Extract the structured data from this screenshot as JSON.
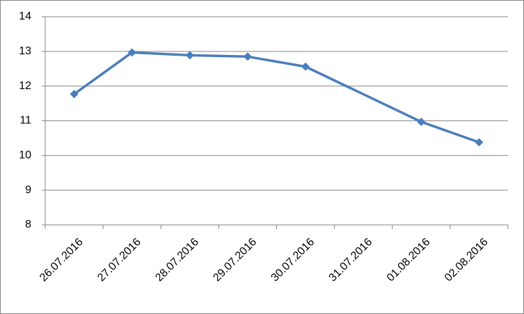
{
  "chart_data": {
    "type": "line",
    "x": [
      "26.07.2016",
      "27.07.2016",
      "28.07.2016",
      "29.07.2016",
      "30.07.2016",
      "01.08.2016",
      "02.08.2016"
    ],
    "series": [
      {
        "color": "#4a7ebb",
        "values": [
          11.77,
          12.97,
          12.89,
          12.85,
          12.56,
          10.97,
          10.38
        ]
      }
    ],
    "xticks": [
      "26.07.2016",
      "27.07.2016",
      "28.07.2016",
      "29.07.2016",
      "30.07.2016",
      "31.07.2016",
      "01.08.2016",
      "02.08.2016"
    ],
    "ylim": [
      8,
      14
    ],
    "yticks": [
      8,
      9,
      10,
      11,
      12,
      13,
      14
    ],
    "grid": true
  }
}
